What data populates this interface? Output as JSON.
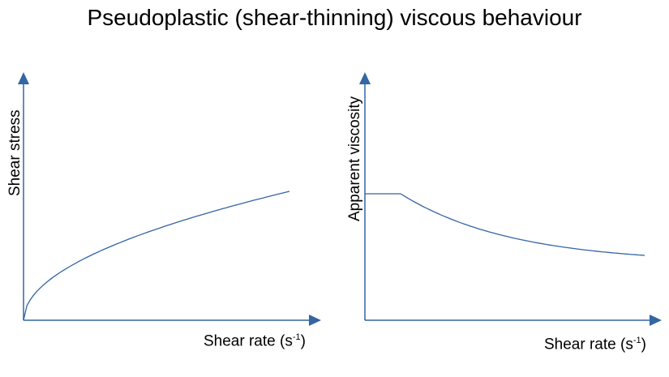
{
  "title": "Pseudoplastic (shear-thinning) viscous behaviour",
  "panels": [
    {
      "ylabel": "Shear stress",
      "xlabel_main": "Shear rate (s",
      "xlabel_sup": "-1",
      "xlabel_end": ")",
      "curve": "shear-thinning power-law rise"
    },
    {
      "ylabel": "Apparent viscosity",
      "xlabel_main": "Shear rate (s",
      "xlabel_sup": "-1",
      "xlabel_end": ")",
      "curve": "constant plateau then decreasing"
    }
  ],
  "colors": {
    "axis": "#3465a4",
    "curve": "#3465a4",
    "text": "#000000"
  }
}
